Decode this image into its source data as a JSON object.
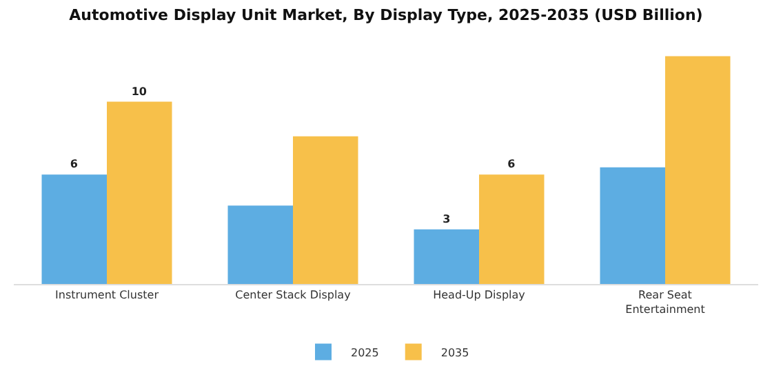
{
  "chart_data": {
    "type": "bar",
    "title": "Automotive Display Unit Market, By Display Type, 2025-2035 (USD Billion)",
    "categories": [
      "Instrument Cluster",
      "Center Stack Display",
      "Head-Up Display",
      "Rear Seat Entertainment"
    ],
    "series": [
      {
        "name": "2025",
        "color": "#5dade2",
        "values": [
          6,
          4.3,
          3,
          6.4
        ],
        "value_labels": [
          "6",
          null,
          "3",
          null
        ]
      },
      {
        "name": "2035",
        "color": "#f7c04a",
        "values": [
          10,
          8.1,
          6,
          12.5
        ],
        "value_labels": [
          "10",
          null,
          "6",
          null
        ]
      }
    ],
    "legend": "bottom",
    "grid": false
  }
}
